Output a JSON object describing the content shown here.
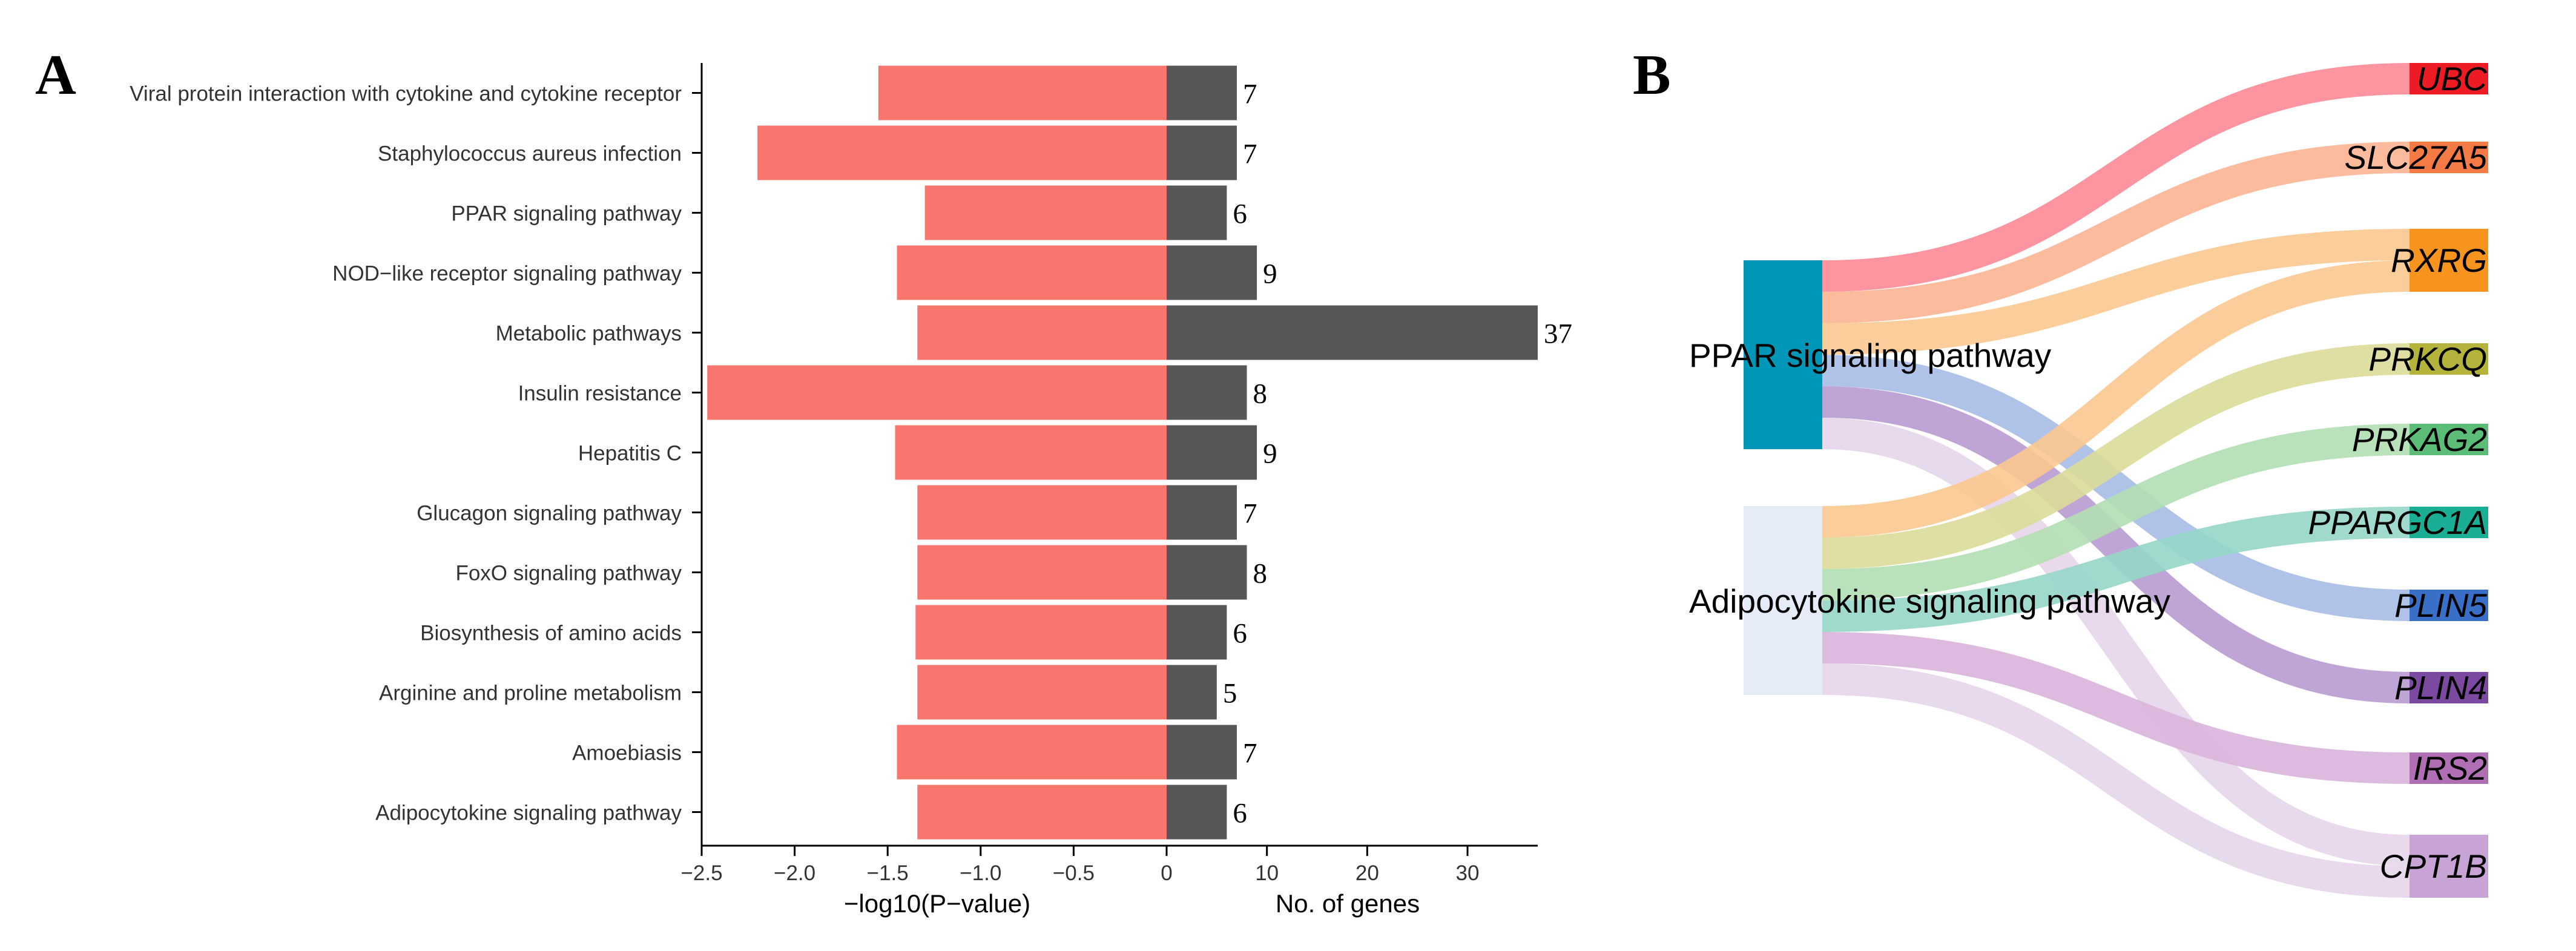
{
  "panel_labels": {
    "a": "A",
    "b": "B"
  },
  "chart_data": [
    {
      "type": "bar",
      "title": "",
      "categories": [
        "Viral protein interaction with cytokine and cytokine receptor",
        "Staphylococcus aureus infection",
        "PPAR signaling pathway",
        "NOD−like receptor signaling pathway",
        "Metabolic pathways",
        "Insulin resistance",
        "Hepatitis C",
        "Glucagon signaling pathway",
        "FoxO signaling pathway",
        "Biosynthesis of amino acids",
        "Arginine and proline metabolism",
        "Amoebiasis",
        "Adipocytokine signaling pathway"
      ],
      "series": [
        {
          "name": "−log10(P−value)",
          "values": [
            1.55,
            2.2,
            1.3,
            1.45,
            1.34,
            2.47,
            1.46,
            1.34,
            1.34,
            1.35,
            1.34,
            1.45,
            1.34
          ],
          "color": "#f8766d"
        },
        {
          "name": "No. of genes",
          "values": [
            7,
            7,
            6,
            9,
            37,
            8,
            9,
            7,
            8,
            6,
            5,
            7,
            6
          ],
          "color": "#575757"
        }
      ],
      "x_ticks_left": [
        "−2.5",
        "−2.0",
        "−1.5",
        "−1.0",
        "−0.5",
        "0"
      ],
      "x_ticks_right": [
        "10",
        "20",
        "30"
      ],
      "xlabel_left": "−log10(P−value)",
      "xlabel_right": "No. of genes",
      "xlim_left": [
        -2.5,
        0
      ],
      "xlim_right": [
        0,
        37
      ]
    },
    {
      "type": "sankey",
      "sources": [
        {
          "name": "PPAR signaling pathway",
          "color": "#0096b8"
        },
        {
          "name": "Adipocytokine signaling pathway",
          "color": "#e6ebf8"
        }
      ],
      "targets": [
        {
          "name": "UBC",
          "color": "#ed1c24",
          "band": "#fc8a96"
        },
        {
          "name": "SLC27A5",
          "color": "#f47b45",
          "band": "#fdb494"
        },
        {
          "name": "RXRG",
          "color": "#f7941d",
          "band": "#fbc88f"
        },
        {
          "name": "PRKCQ",
          "color": "#b4b33c",
          "band": "#dcdc9a"
        },
        {
          "name": "PRKAG2",
          "color": "#5cbd78",
          "band": "#b2dfb3"
        },
        {
          "name": "PPARGC1A",
          "color": "#1aaf95",
          "band": "#96d6c8"
        },
        {
          "name": "PLIN5",
          "color": "#3a6fc8",
          "band": "#a6bde5"
        },
        {
          "name": "PLIN4",
          "color": "#7b4aa0",
          "band": "#b89bd0"
        },
        {
          "name": "IRS2",
          "color": "#b06fb4",
          "band": "#d9b4da"
        },
        {
          "name": "CPT1B",
          "color": "#c7a3d6",
          "band": "#e5d5ea"
        }
      ],
      "links": [
        {
          "source": 0,
          "target": 0,
          "value": 1
        },
        {
          "source": 0,
          "target": 1,
          "value": 1
        },
        {
          "source": 0,
          "target": 2,
          "value": 1
        },
        {
          "source": 0,
          "target": 6,
          "value": 1
        },
        {
          "source": 0,
          "target": 7,
          "value": 1
        },
        {
          "source": 0,
          "target": 9,
          "value": 1
        },
        {
          "source": 1,
          "target": 2,
          "value": 1
        },
        {
          "source": 1,
          "target": 3,
          "value": 1
        },
        {
          "source": 1,
          "target": 4,
          "value": 1
        },
        {
          "source": 1,
          "target": 5,
          "value": 1
        },
        {
          "source": 1,
          "target": 8,
          "value": 1
        },
        {
          "source": 1,
          "target": 9,
          "value": 1
        }
      ]
    }
  ]
}
